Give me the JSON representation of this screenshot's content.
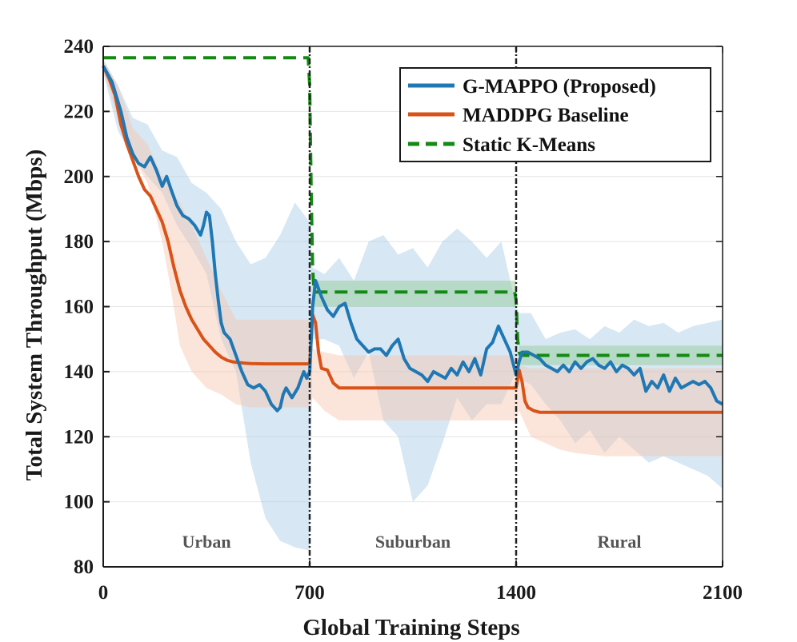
{
  "chart_data": {
    "type": "line",
    "xlabel": "Global Training Steps",
    "ylabel": "Total System Throughput (Mbps)",
    "xlim": [
      0,
      2100
    ],
    "ylim": [
      80,
      240
    ],
    "xticks": [
      "0",
      "700",
      "1400",
      "2100"
    ],
    "yticks": [
      "80",
      "100",
      "120",
      "140",
      "160",
      "180",
      "200",
      "220",
      "240"
    ],
    "grid": "horizontal",
    "legend_position": "top-right",
    "phase_boundaries": [
      700,
      1400
    ],
    "regions": [
      {
        "label": "Urban",
        "x": 350
      },
      {
        "label": "Suburban",
        "x": 1050
      },
      {
        "label": "Rural",
        "x": 1750
      }
    ],
    "colors": {
      "gmappo": "#1f77b4",
      "maddpg": "#d95319",
      "kmeans": "#138a13",
      "gmappo_band": "#a6cbe7",
      "maddpg_band": "#f7c6ad",
      "kmeans_band": "#90c890"
    },
    "series": [
      {
        "name": "G-MAPPO (Proposed)",
        "style": "solid",
        "x": [
          0,
          30,
          60,
          80,
          100,
          120,
          140,
          160,
          180,
          200,
          215,
          230,
          250,
          270,
          290,
          310,
          330,
          340,
          350,
          360,
          370,
          380,
          390,
          400,
          410,
          420,
          430,
          450,
          470,
          490,
          510,
          530,
          550,
          570,
          590,
          600,
          610,
          620,
          640,
          660,
          680,
          690,
          700,
          710,
          720,
          740,
          760,
          780,
          800,
          820,
          840,
          860,
          880,
          900,
          920,
          940,
          960,
          980,
          1000,
          1020,
          1040,
          1060,
          1080,
          1100,
          1120,
          1140,
          1160,
          1180,
          1200,
          1220,
          1240,
          1260,
          1280,
          1300,
          1320,
          1340,
          1360,
          1380,
          1400,
          1410,
          1420,
          1440,
          1460,
          1480,
          1500,
          1520,
          1540,
          1560,
          1580,
          1600,
          1620,
          1640,
          1660,
          1680,
          1700,
          1720,
          1740,
          1760,
          1780,
          1800,
          1820,
          1840,
          1860,
          1880,
          1900,
          1920,
          1940,
          1960,
          1980,
          2000,
          2020,
          2040,
          2060,
          2080,
          2100
        ],
        "values": [
          234,
          229,
          220,
          212,
          207,
          204,
          203,
          206,
          202,
          197,
          200,
          196,
          191,
          188,
          187,
          185,
          182,
          185,
          189,
          188,
          180,
          170,
          162,
          155,
          152,
          151,
          150,
          145,
          140,
          136,
          135,
          136,
          134,
          130,
          128,
          129,
          133,
          135,
          132,
          135,
          140,
          138,
          140,
          160,
          168,
          163,
          159,
          157,
          160,
          161,
          155,
          150,
          148,
          146,
          147,
          147,
          145,
          148,
          150,
          144,
          141,
          140,
          139,
          137,
          140,
          139,
          138,
          141,
          139,
          143,
          140,
          144,
          139,
          147,
          149,
          154,
          150,
          146,
          139,
          143,
          146,
          146,
          145,
          144,
          142,
          141,
          140,
          142,
          140,
          143,
          141,
          143,
          144,
          142,
          141,
          143,
          140,
          142,
          141,
          139,
          141,
          134,
          137,
          135,
          139,
          134,
          138,
          135,
          136,
          137,
          136,
          137,
          135,
          131,
          130
        ]
      },
      {
        "name": "MADDPG Baseline",
        "style": "solid",
        "x": [
          0,
          20,
          40,
          60,
          80,
          100,
          120,
          140,
          160,
          180,
          200,
          220,
          240,
          260,
          280,
          300,
          320,
          340,
          360,
          380,
          400,
          420,
          440,
          460,
          480,
          500,
          550,
          600,
          650,
          690,
          700,
          710,
          720,
          730,
          740,
          760,
          780,
          800,
          820,
          850,
          900,
          1000,
          1100,
          1200,
          1300,
          1390,
          1400,
          1410,
          1420,
          1430,
          1440,
          1460,
          1480,
          1500,
          1550,
          1600,
          1700,
          1800,
          1900,
          2000,
          2100
        ],
        "values": [
          234,
          230,
          225,
          216,
          210,
          205,
          200,
          196,
          194,
          190,
          186,
          180,
          172,
          165,
          160,
          156,
          153,
          150,
          148,
          146,
          144.5,
          143.5,
          143,
          142.8,
          142.6,
          142.5,
          142.4,
          142.4,
          142.4,
          142.4,
          142.4,
          157.5,
          155,
          146,
          141,
          140.5,
          136.5,
          135,
          135,
          135,
          135,
          135,
          135,
          135,
          135,
          135,
          135,
          140.5,
          137,
          131,
          129,
          128,
          127.5,
          127.5,
          127.5,
          127.5,
          127.5,
          127.5,
          127.5,
          127.5,
          127.5
        ]
      },
      {
        "name": "Static K-Means",
        "style": "dashed",
        "x": [
          0,
          695,
          700,
          705,
          710,
          715,
          1395,
          1400,
          1405,
          1410,
          1415,
          2100
        ],
        "values": [
          236.5,
          236.5,
          228,
          196,
          172,
          164.5,
          164.5,
          162,
          150,
          146,
          145,
          145
        ]
      }
    ],
    "bands": [
      {
        "series": "G-MAPPO (Proposed)",
        "x": [
          0,
          50,
          100,
          150,
          200,
          250,
          300,
          350,
          400,
          450,
          500,
          550,
          600,
          650,
          700,
          710,
          750,
          800,
          850,
          900,
          950,
          1000,
          1050,
          1100,
          1150,
          1200,
          1250,
          1300,
          1350,
          1400,
          1410,
          1450,
          1500,
          1550,
          1600,
          1650,
          1700,
          1750,
          1800,
          1850,
          1900,
          1950,
          2000,
          2050,
          2100
        ],
        "upper": [
          236,
          228,
          218,
          216,
          208,
          206,
          198,
          195,
          190,
          180,
          173,
          175,
          182,
          192,
          186,
          172,
          170,
          175,
          168,
          180,
          182,
          176,
          178,
          172,
          180,
          184,
          180,
          175,
          180,
          160,
          158,
          158,
          150,
          152,
          153,
          150,
          154,
          152,
          156,
          154,
          155,
          152,
          154,
          155,
          156
        ],
        "lower": [
          232,
          214,
          206,
          200,
          195,
          185,
          178,
          170,
          150,
          140,
          112,
          95,
          88,
          86,
          85,
          150,
          150,
          148,
          138,
          146,
          125,
          120,
          100,
          105,
          118,
          132,
          125,
          130,
          130,
          140,
          138,
          136,
          130,
          125,
          118,
          122,
          115,
          120,
          116,
          112,
          114,
          112,
          110,
          108,
          104
        ]
      },
      {
        "series": "MADDPG Baseline",
        "x": [
          0,
          50,
          100,
          150,
          200,
          230,
          260,
          300,
          350,
          400,
          450,
          500,
          550,
          600,
          650,
          700,
          710,
          750,
          800,
          900,
          1000,
          1100,
          1200,
          1300,
          1400,
          1410,
          1450,
          1500,
          1550,
          1600,
          1700,
          1800,
          1900,
          2000,
          2100
        ],
        "upper": [
          236,
          228,
          215,
          210,
          200,
          196,
          192,
          185,
          175,
          165,
          156,
          156,
          156,
          156,
          156,
          156,
          147,
          146,
          145,
          145,
          145,
          145,
          145,
          145,
          145,
          142,
          141,
          141,
          141,
          141,
          141,
          141,
          141,
          141,
          141
        ],
        "lower": [
          232,
          218,
          206,
          198,
          180,
          165,
          148,
          140,
          135,
          133,
          130,
          129,
          129,
          129,
          129,
          129,
          132,
          128,
          125,
          125,
          125,
          125,
          125,
          125,
          125,
          128,
          120,
          118,
          116,
          115,
          114,
          114,
          114,
          114,
          114
        ]
      },
      {
        "series": "Static K-Means",
        "x": [
          710,
          1400
        ],
        "upper": [
          168,
          168
        ],
        "lower": [
          160,
          160
        ]
      },
      {
        "series": "Static K-Means",
        "x": [
          1410,
          2100
        ],
        "upper": [
          148,
          148
        ],
        "lower": [
          142,
          142
        ]
      }
    ]
  }
}
